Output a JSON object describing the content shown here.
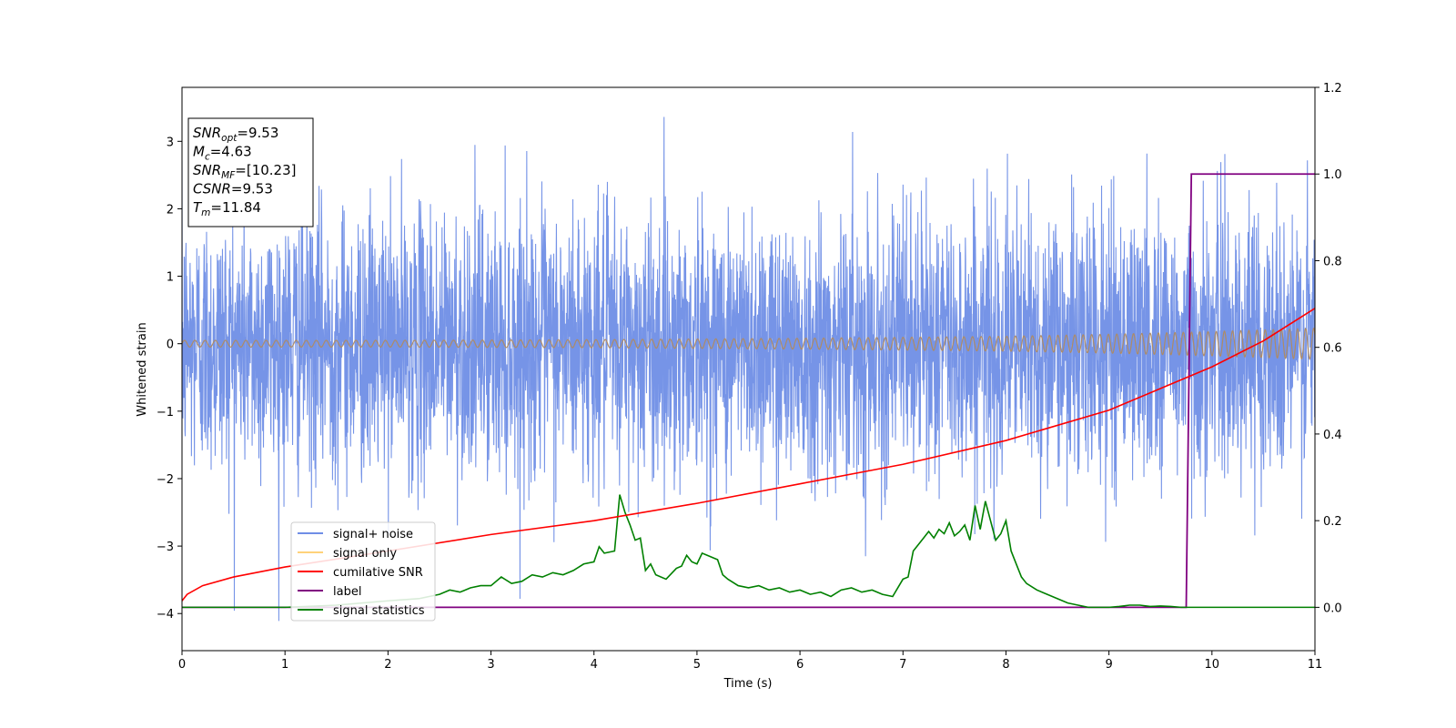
{
  "chart_data": {
    "type": "line",
    "xlabel": "Time (s)",
    "ylabel": "Whitened strain",
    "xlim": [
      0,
      11
    ],
    "ylim_left": [
      -4.55,
      3.8
    ],
    "ylim_right": [
      -0.1,
      1.2
    ],
    "x_ticks": [
      "0",
      "1",
      "2",
      "3",
      "4",
      "5",
      "6",
      "7",
      "8",
      "9",
      "10",
      "11"
    ],
    "y_left_ticks": [
      "3",
      "2",
      "1",
      "0",
      "−1",
      "−2",
      "−3",
      "−4"
    ],
    "y_right_ticks": [
      "1.2",
      "1.0",
      "0.8",
      "0.6",
      "0.4",
      "0.2",
      "0.0"
    ],
    "grid": false,
    "legend_position": "lower-left",
    "info_box": {
      "position": "top-left",
      "lines": [
        {
          "sym": "SNR",
          "sub": "opt",
          "value": "=9.53"
        },
        {
          "sym": "M",
          "sub": "c",
          "value": "=4.63"
        },
        {
          "sym": "SNR",
          "sub": "MF",
          "value": "=[10.23]"
        },
        {
          "sym": "CSNR",
          "sub": "",
          "value": "=9.53"
        },
        {
          "sym": "T",
          "sub": "m",
          "value": "=11.84"
        }
      ]
    },
    "series": [
      {
        "name": "signal+ noise",
        "axis": "left",
        "color": "#6f8ee6",
        "style": "whitened gaussian noise, std ~1.0, peaks to about 3.4 and -4.2"
      },
      {
        "name": "signal only",
        "axis": "left",
        "color": "#ffd27a",
        "envelope": {
          "x": [
            0,
            2,
            4,
            6,
            8,
            9,
            10,
            11
          ],
          "amplitude": [
            0.05,
            0.05,
            0.06,
            0.08,
            0.11,
            0.14,
            0.18,
            0.23
          ]
        }
      },
      {
        "name": "cumilative SNR",
        "axis": "right",
        "color": "#ff0000",
        "x": [
          0,
          0.05,
          0.2,
          0.5,
          1,
          2,
          3,
          4,
          5,
          6,
          7,
          8,
          9,
          10,
          10.5,
          11
        ],
        "y": [
          0.015,
          0.03,
          0.05,
          0.07,
          0.093,
          0.13,
          0.168,
          0.2,
          0.24,
          0.285,
          0.33,
          0.385,
          0.455,
          0.555,
          0.615,
          0.69
        ]
      },
      {
        "name": "label",
        "axis": "right",
        "color": "#800080",
        "x": [
          0,
          9.75,
          9.8,
          11
        ],
        "y": [
          0,
          0,
          1,
          1
        ]
      },
      {
        "name": "signal statistics",
        "axis": "right",
        "color": "#008000",
        "x": [
          0,
          0.5,
          1,
          1.5,
          2,
          2.3,
          2.5,
          2.6,
          2.7,
          2.8,
          2.9,
          3.0,
          3.1,
          3.2,
          3.3,
          3.4,
          3.5,
          3.6,
          3.7,
          3.8,
          3.9,
          4.0,
          4.05,
          4.1,
          4.2,
          4.25,
          4.3,
          4.35,
          4.4,
          4.45,
          4.5,
          4.55,
          4.6,
          4.7,
          4.8,
          4.85,
          4.9,
          4.95,
          5.0,
          5.05,
          5.1,
          5.15,
          5.2,
          5.25,
          5.3,
          5.4,
          5.5,
          5.6,
          5.7,
          5.8,
          5.9,
          6.0,
          6.1,
          6.2,
          6.3,
          6.4,
          6.5,
          6.6,
          6.7,
          6.8,
          6.9,
          6.95,
          7.0,
          7.05,
          7.1,
          7.15,
          7.2,
          7.25,
          7.3,
          7.35,
          7.4,
          7.45,
          7.5,
          7.55,
          7.6,
          7.65,
          7.7,
          7.75,
          7.8,
          7.85,
          7.9,
          7.95,
          8.0,
          8.05,
          8.1,
          8.15,
          8.2,
          8.3,
          8.4,
          8.5,
          8.6,
          8.7,
          8.8,
          8.9,
          9.0,
          9.1,
          9.2,
          9.3,
          9.4,
          9.5,
          9.6,
          9.7,
          9.75,
          9.8,
          10,
          10.5,
          11
        ],
        "y": [
          0.0,
          0.0,
          0.0,
          0.005,
          0.015,
          0.02,
          0.03,
          0.04,
          0.035,
          0.045,
          0.05,
          0.05,
          0.07,
          0.055,
          0.06,
          0.075,
          0.07,
          0.08,
          0.075,
          0.085,
          0.1,
          0.105,
          0.14,
          0.125,
          0.13,
          0.26,
          0.22,
          0.19,
          0.155,
          0.16,
          0.085,
          0.1,
          0.075,
          0.065,
          0.09,
          0.095,
          0.12,
          0.105,
          0.1,
          0.125,
          0.12,
          0.115,
          0.11,
          0.075,
          0.065,
          0.05,
          0.045,
          0.05,
          0.04,
          0.045,
          0.035,
          0.04,
          0.03,
          0.035,
          0.025,
          0.04,
          0.045,
          0.035,
          0.04,
          0.03,
          0.025,
          0.045,
          0.065,
          0.07,
          0.13,
          0.145,
          0.16,
          0.175,
          0.16,
          0.18,
          0.17,
          0.195,
          0.165,
          0.175,
          0.19,
          0.155,
          0.235,
          0.18,
          0.245,
          0.2,
          0.155,
          0.17,
          0.2,
          0.13,
          0.1,
          0.07,
          0.055,
          0.04,
          0.03,
          0.02,
          0.01,
          0.005,
          0.0,
          0.0,
          0.0,
          0.002,
          0.005,
          0.005,
          0.002,
          0.003,
          0.002,
          0.0,
          0.0,
          0.0,
          0.0,
          0.0,
          0.0
        ]
      }
    ]
  }
}
